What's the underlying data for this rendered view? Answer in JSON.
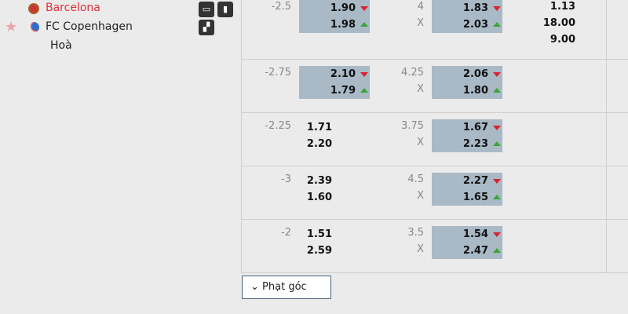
{
  "match": {
    "home": "Barcelona",
    "away": "FC Copenhagen",
    "draw": "Hoà",
    "home_color": "#e0303a"
  },
  "icons": [
    "tv-icon",
    "stats-icon",
    "lineup-icon",
    "star-icon"
  ],
  "rows": [
    {
      "hcp": "-2.5",
      "hcp_odds": [
        "1.90",
        "1.98"
      ],
      "hcp_hl": true,
      "hcp_dirs": [
        "down",
        "up"
      ],
      "ou": "4",
      "ou_x": "X",
      "ou_odds": [
        "1.83",
        "2.03"
      ],
      "ou_hl": true,
      "ou_dirs": [
        "down",
        "up"
      ],
      "x12": [
        "1.13",
        "18.00",
        "9.00"
      ]
    },
    {
      "hcp": "-2.75",
      "hcp_odds": [
        "2.10",
        "1.79"
      ],
      "hcp_hl": true,
      "hcp_dirs": [
        "down",
        "up"
      ],
      "ou": "4.25",
      "ou_x": "X",
      "ou_odds": [
        "2.06",
        "1.80"
      ],
      "ou_hl": true,
      "ou_dirs": [
        "down",
        "up"
      ]
    },
    {
      "hcp": "-2.25",
      "hcp_odds": [
        "1.71",
        "2.20"
      ],
      "hcp_hl": false,
      "ou": "3.75",
      "ou_x": "X",
      "ou_odds": [
        "1.67",
        "2.23"
      ],
      "ou_hl": true,
      "ou_dirs": [
        "down",
        "up"
      ]
    },
    {
      "hcp": "-3",
      "hcp_odds": [
        "2.39",
        "1.60"
      ],
      "hcp_hl": false,
      "ou": "4.5",
      "ou_x": "X",
      "ou_odds": [
        "2.27",
        "1.65"
      ],
      "ou_hl": true,
      "ou_dirs": [
        "down",
        "up"
      ]
    },
    {
      "hcp": "-2",
      "hcp_odds": [
        "1.51",
        "2.59"
      ],
      "hcp_hl": false,
      "ou": "3.5",
      "ou_x": "X",
      "ou_odds": [
        "1.54",
        "2.47"
      ],
      "ou_hl": true,
      "ou_dirs": [
        "down",
        "up"
      ]
    }
  ],
  "corner_button": "Phạt góc"
}
